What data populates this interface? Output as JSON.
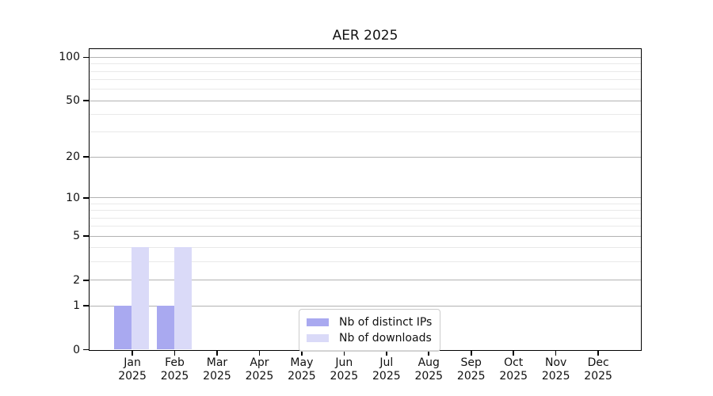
{
  "chart_data": {
    "type": "bar",
    "title": "AER 2025",
    "categories": [
      "Jan",
      "Feb",
      "Mar",
      "Apr",
      "May",
      "Jun",
      "Jul",
      "Aug",
      "Sep",
      "Oct",
      "Nov",
      "Dec"
    ],
    "category_year": "2025",
    "series": [
      {
        "name": "Nb of distinct IPs",
        "color": "#a9a9f0",
        "values": [
          1,
          1,
          0,
          0,
          0,
          0,
          0,
          0,
          0,
          0,
          0,
          0
        ]
      },
      {
        "name": "Nb of downloads",
        "color": "#dadaf8",
        "values": [
          4,
          4,
          0,
          0,
          0,
          0,
          0,
          0,
          0,
          0,
          0,
          0
        ]
      }
    ],
    "y_scale": "log10(1+x)",
    "y_major_ticks": [
      0,
      1,
      2,
      5,
      10,
      20,
      50,
      100
    ],
    "y_minor_gridlines": [
      3,
      4,
      6,
      7,
      8,
      9,
      30,
      40,
      60,
      70,
      80,
      90
    ],
    "ylim": [
      0,
      113.3
    ],
    "xlabel": "",
    "ylabel": "",
    "grid": "horizontal",
    "legend_position": "lower center",
    "colors": {
      "major_grid": "#b2b2b2",
      "minor_grid": "#e9e9e9",
      "spine": "#000000",
      "text": "#111111"
    }
  }
}
